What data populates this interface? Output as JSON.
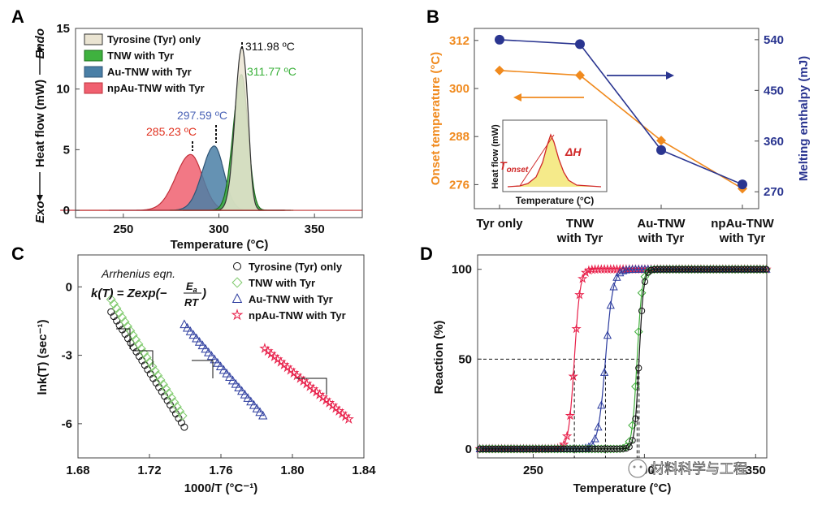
{
  "chart_data": [
    {
      "panel": "A",
      "type": "area",
      "xlabel": "Temperature (°C)",
      "ylabel": "Heat flow (mW)",
      "ylabel_top": "Endo",
      "ylabel_bottom": "Exo",
      "xlim": [
        225,
        375
      ],
      "ylim": [
        -0.6,
        15
      ],
      "xticks": [
        "250",
        "300",
        "350"
      ],
      "yticks": [
        "0",
        "5",
        "10",
        "15"
      ],
      "series": [
        {
          "name": "Tyrosine (Tyr) only",
          "peak_x": 311.98,
          "peak_y": 13.4,
          "width": 2.8,
          "shoulder": true,
          "color": "#eae4d2",
          "edge": "#333333"
        },
        {
          "name": "TNW with Tyr",
          "peak_x": 311.77,
          "peak_y": 11.2,
          "width": 3.4,
          "color": "#3fb23f",
          "edge": "#1e6e1e"
        },
        {
          "name": "Au-TNW with Tyr",
          "peak_x": 297.59,
          "peak_y": 5.3,
          "width": 5.0,
          "color": "#4a7fa6",
          "edge": "#2f5475"
        },
        {
          "name": "npAu-TNW with Tyr",
          "peak_x": 285.23,
          "peak_y": 4.6,
          "width": 6.2,
          "color": "#f06070",
          "edge": "#c0303a"
        }
      ],
      "annotations": [
        {
          "text": "311.98 ºC",
          "color": "#111111"
        },
        {
          "text": "311.77 ºC",
          "color": "#39b039"
        },
        {
          "text": "297.59 ºC",
          "color": "#4a63b6"
        },
        {
          "text": "285.23 ºC",
          "color": "#e0301e"
        }
      ]
    },
    {
      "panel": "B",
      "type": "line",
      "categories": [
        "Tyr only",
        "TNW with Tyr",
        "Au-TNW with Tyr",
        "npAu-TNW with Tyr"
      ],
      "category_lines": [
        [
          "Tyr only"
        ],
        [
          "TNW",
          "with Tyr"
        ],
        [
          "Au-TNW",
          "with Tyr"
        ],
        [
          "npAu-TNW",
          "with Tyr"
        ]
      ],
      "ylabel_left": "Onset temperature (°C)",
      "ylabel_right": "Melting enthalpy (mJ)",
      "ylim_left": [
        270,
        315
      ],
      "ylim_right": [
        240,
        560
      ],
      "yticks_left": [
        "276",
        "288",
        "300",
        "312"
      ],
      "yticks_right": [
        "270",
        "360",
        "450",
        "540"
      ],
      "series": [
        {
          "name": "Onset temperature",
          "axis": "left",
          "values": [
            304.5,
            303.3,
            287.0,
            275.0
          ],
          "color": "#f08a1e"
        },
        {
          "name": "Melting enthalpy",
          "axis": "right",
          "values": [
            540,
            532,
            344,
            283
          ],
          "color": "#2a3590"
        }
      ],
      "inset": {
        "xlabel": "Temperature (°C)",
        "ylabel": "Heat flow (mW)",
        "tonset": "T",
        "tonset_sub": "onset",
        "dh": "ΔH"
      }
    },
    {
      "panel": "C",
      "type": "scatter",
      "xlabel": "1000/T (°C⁻¹)",
      "ylabel": "lnk(T) (sec⁻¹)",
      "xlim": [
        1.68,
        1.84
      ],
      "ylim": [
        -7.5,
        1.4
      ],
      "xticks": [
        "1.68",
        "1.72",
        "1.76",
        "1.80",
        "1.84"
      ],
      "yticks": [
        "0",
        "-3",
        "-6"
      ],
      "equation_title": "Arrhenius eqn.",
      "equation": "k(T) = Zexp(−Ea/RT)",
      "series": [
        {
          "name": "Tyrosine (Tyr) only",
          "marker": "circle",
          "x_start": 1.6985,
          "y_start": -1.1,
          "x_end": 1.7395,
          "y_end": -6.15,
          "color": "#111111"
        },
        {
          "name": "TNW with Tyr",
          "marker": "diamond",
          "x_start": 1.6985,
          "y_start": -0.55,
          "x_end": 1.7385,
          "y_end": -5.65,
          "color": "#7dc96a"
        },
        {
          "name": "Au-TNW with Tyr",
          "marker": "triangle",
          "x_start": 1.7395,
          "y_start": -1.65,
          "x_end": 1.7835,
          "y_end": -5.65,
          "color": "#2b3b9e"
        },
        {
          "name": "npAu-TNW with Tyr",
          "marker": "star",
          "x_start": 1.7845,
          "y_start": -2.7,
          "x_end": 1.8315,
          "y_end": -5.8,
          "color": "#e8204a"
        }
      ]
    },
    {
      "panel": "D",
      "type": "line",
      "xlabel": "Temperature (°C)",
      "ylabel": "Reaction (%)",
      "xlim": [
        225,
        355
      ],
      "ylim": [
        -5,
        108
      ],
      "xticks": [
        "250",
        "300",
        "350"
      ],
      "yticks": [
        "0",
        "50",
        "100"
      ],
      "series": [
        {
          "name": "npAu-TNW with Tyr",
          "marker": "star",
          "midpoint": 268.5,
          "k": 0.78,
          "color": "#e8204a"
        },
        {
          "name": "Au-TNW with Tyr",
          "marker": "triangle",
          "midpoint": 282.5,
          "k": 0.6,
          "color": "#2b3b9e"
        },
        {
          "name": "TNW with Tyr",
          "marker": "diamond",
          "midpoint": 296.7,
          "k": 0.9,
          "color": "#3fae3a"
        },
        {
          "name": "Tyrosine (Tyr) only",
          "marker": "circle",
          "midpoint": 297.6,
          "k": 1.0,
          "color": "#111111"
        }
      ]
    }
  ],
  "panel_labels": [
    "A",
    "B",
    "C",
    "D"
  ],
  "watermark": "材料科学与工程"
}
